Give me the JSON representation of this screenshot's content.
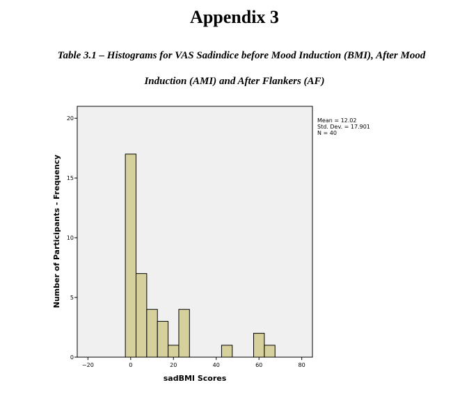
{
  "page": {
    "heading": "Appendix 3",
    "caption_line1": "Table 3.1 – Histograms for VAS Sadindice before Mood Induction (BMI), After Mood",
    "caption_line2": "Induction (AMI) and After Flankers (AF)"
  },
  "chart_data": {
    "type": "bar",
    "subtype": "histogram",
    "title": "",
    "xlabel": "sadBMI Scores",
    "ylabel": "Number of Participants - Frequency",
    "xlim": [
      -25,
      85
    ],
    "ylim": [
      0,
      21
    ],
    "x_ticks": [
      -20,
      0,
      20,
      40,
      60,
      80
    ],
    "y_ticks": [
      0,
      5,
      10,
      15,
      20
    ],
    "bin_width": 5,
    "bins": [
      {
        "start": -2.5,
        "end": 2.5,
        "count": 17
      },
      {
        "start": 2.5,
        "end": 7.5,
        "count": 7
      },
      {
        "start": 7.5,
        "end": 12.5,
        "count": 4
      },
      {
        "start": 12.5,
        "end": 17.5,
        "count": 3
      },
      {
        "start": 17.5,
        "end": 22.5,
        "count": 1
      },
      {
        "start": 22.5,
        "end": 27.5,
        "count": 4
      },
      {
        "start": 42.5,
        "end": 47.5,
        "count": 1
      },
      {
        "start": 57.5,
        "end": 62.5,
        "count": 2
      },
      {
        "start": 62.5,
        "end": 67.5,
        "count": 1
      }
    ],
    "stats": {
      "mean": "Mean = 12.02",
      "std_dev": "Std. Dev. = 17.901",
      "n": "N = 40"
    },
    "colors": {
      "plot_background": "#f0f0f0",
      "bar_fill": "#d6d09c",
      "bar_stroke": "#000000"
    },
    "grid": false,
    "legend": "none"
  }
}
